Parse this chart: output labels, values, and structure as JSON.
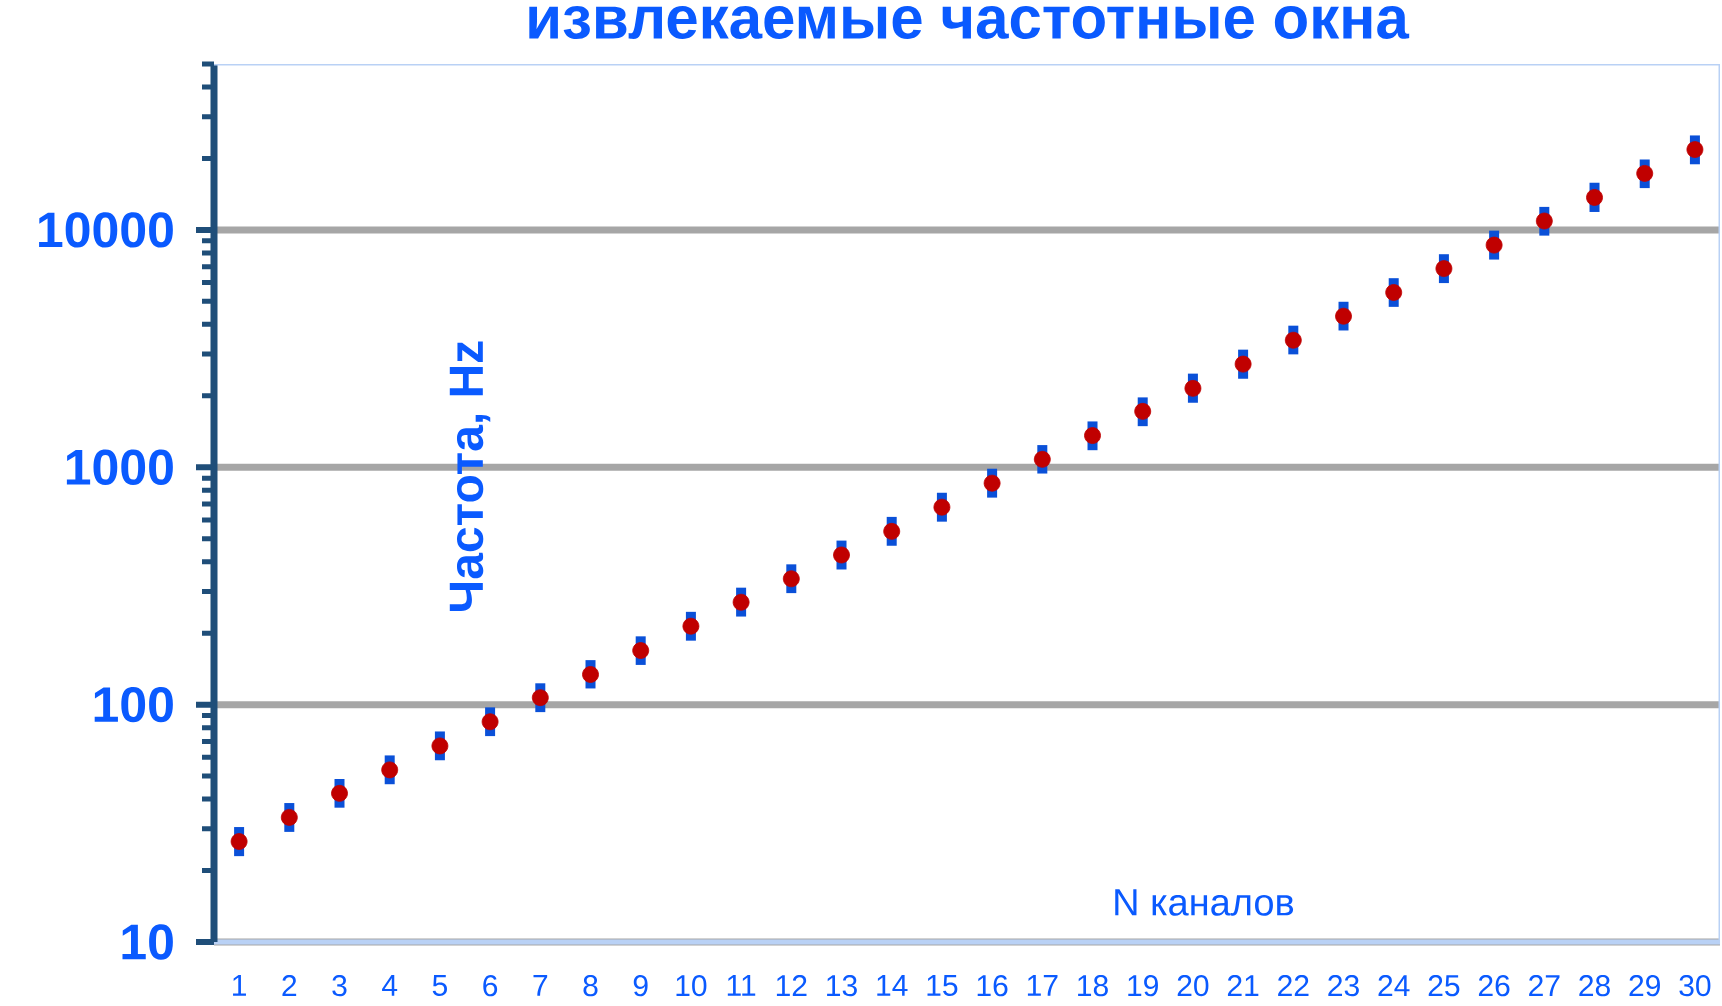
{
  "chart_data": {
    "type": "scatter",
    "title": "извлекаемые частотные окна",
    "xlabel": "N каналов",
    "ylabel": "Частота, Hz",
    "categories": [
      "1",
      "2",
      "3",
      "4",
      "5",
      "6",
      "7",
      "8",
      "9",
      "10",
      "11",
      "12",
      "13",
      "14",
      "15",
      "16",
      "17",
      "18",
      "19",
      "20",
      "21",
      "22",
      "23",
      "24",
      "25",
      "26",
      "27",
      "28",
      "29",
      "30"
    ],
    "series": [
      {
        "color": "#c00000",
        "values": [
          26.5,
          33.5,
          42.3,
          53.1,
          67,
          84.7,
          107,
          134,
          169,
          214,
          270,
          339,
          427,
          537,
          679,
          857,
          1080,
          1360,
          1720,
          2150,
          2720,
          3430,
          4330,
          5450,
          6870,
          8630,
          10900,
          13700,
          17300,
          21800
        ],
        "errors": [
          [
            23,
            30.5
          ],
          [
            29.1,
            38.5
          ],
          [
            36.8,
            48.6
          ],
          [
            46.2,
            61.1
          ],
          [
            58.3,
            77.1
          ],
          [
            73.7,
            97.4
          ],
          [
            93,
            123
          ],
          [
            117,
            154
          ],
          [
            147,
            194
          ],
          [
            186,
            246
          ],
          [
            235,
            311
          ],
          [
            295,
            390
          ],
          [
            371,
            491
          ],
          [
            467,
            618
          ],
          [
            590,
            781
          ],
          [
            745,
            986
          ],
          [
            941,
            1240
          ],
          [
            1180,
            1560
          ],
          [
            1490,
            1970
          ],
          [
            1870,
            2480
          ],
          [
            2360,
            3130
          ],
          [
            2990,
            3950
          ],
          [
            3770,
            4980
          ],
          [
            4740,
            6260
          ],
          [
            5970,
            7900
          ],
          [
            7500,
            9930
          ],
          [
            9460,
            12500
          ],
          [
            11900,
            15800
          ],
          [
            15000,
            19800
          ],
          [
            18900,
            25000
          ]
        ]
      }
    ],
    "log": "y",
    "ylim": [
      10,
      50000
    ],
    "yticks": [
      10,
      100,
      1000,
      10000
    ],
    "grid": "y",
    "marker": "circle"
  }
}
